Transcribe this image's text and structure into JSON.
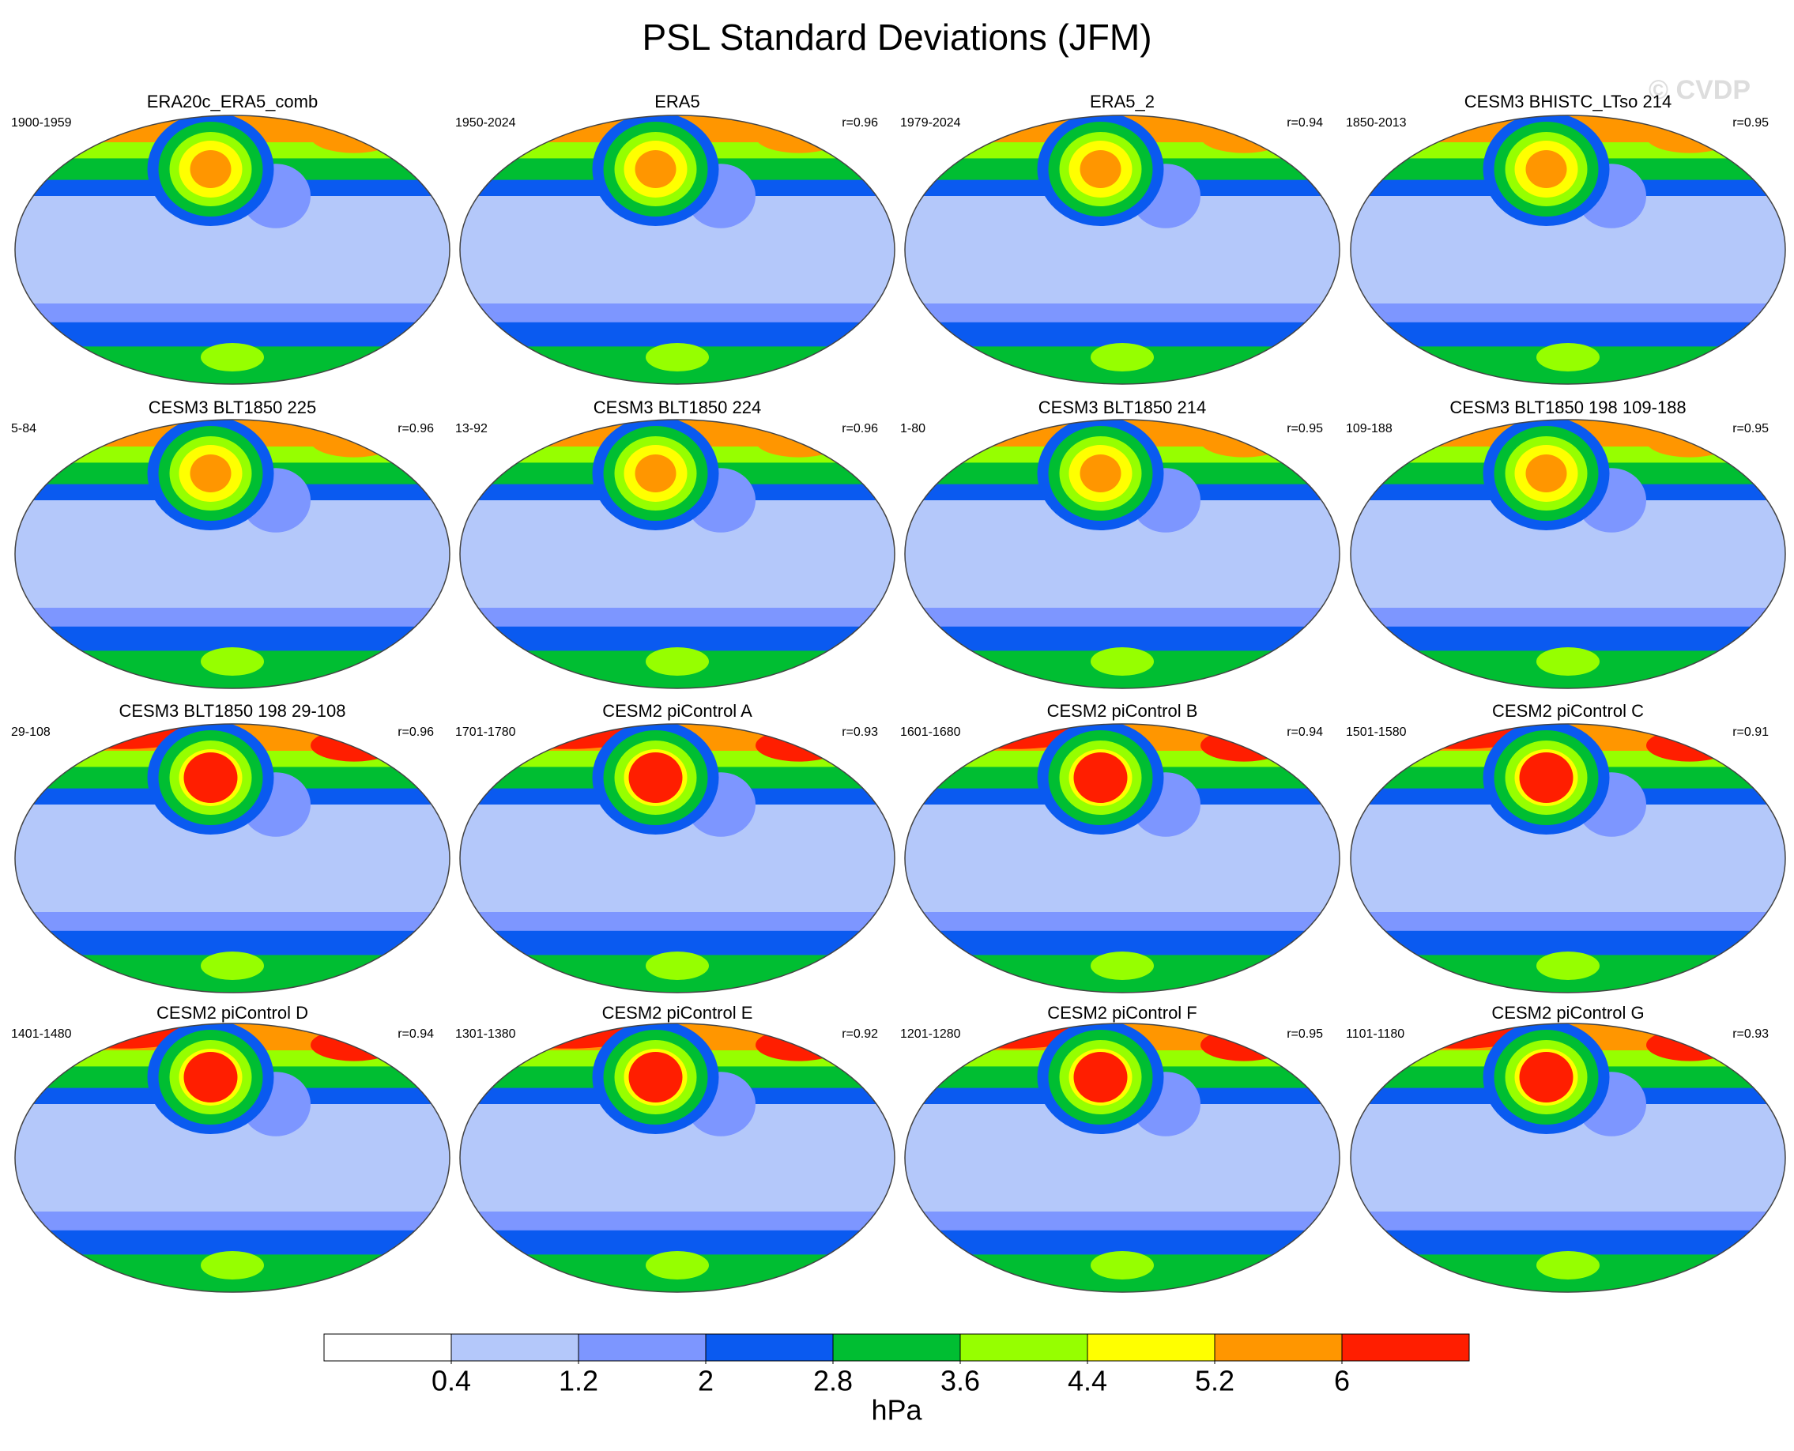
{
  "title": "PSL Standard Deviations (JFM)",
  "watermark": "© CVDP",
  "panels": [
    {
      "title": "ERA20c_ERA5_comb",
      "period": "1900-1959"
    },
    {
      "title": "ERA5",
      "period": "1950-2024",
      "r": "r=0.96"
    },
    {
      "title": "ERA5_2",
      "period": "1979-2024",
      "r": "r=0.94"
    },
    {
      "title": "CESM3 BHISTC_LTso 214",
      "period": "1850-2013",
      "r": "r=0.95"
    },
    {
      "title": "CESM3 BLT1850 225",
      "period": "5-84",
      "r": "r=0.96"
    },
    {
      "title": "CESM3 BLT1850 224",
      "period": "13-92",
      "r": "r=0.96"
    },
    {
      "title": "CESM3 BLT1850 214",
      "period": "1-80",
      "r": "r=0.95"
    },
    {
      "title": "CESM3 BLT1850 198 109-188",
      "period": "109-188",
      "r": "r=0.95"
    },
    {
      "title": "CESM3 BLT1850 198 29-108",
      "period": "29-108",
      "r": "r=0.96"
    },
    {
      "title": "CESM2 piControl A",
      "period": "1701-1780",
      "r": "r=0.93"
    },
    {
      "title": "CESM2 piControl B",
      "period": "1601-1680",
      "r": "r=0.94"
    },
    {
      "title": "CESM2 piControl C",
      "period": "1501-1580",
      "r": "r=0.91"
    },
    {
      "title": "CESM2 piControl D",
      "period": "1401-1480",
      "r": "r=0.94"
    },
    {
      "title": "CESM2 piControl E",
      "period": "1301-1380",
      "r": "r=0.92"
    },
    {
      "title": "CESM2 piControl F",
      "period": "1201-1280",
      "r": "r=0.95"
    },
    {
      "title": "CESM2 piControl G",
      "period": "1101-1180",
      "r": "r=0.93"
    }
  ],
  "colorbar": {
    "colors": [
      "#ffffff",
      "#b4c8fa",
      "#7d96ff",
      "#0a5af0",
      "#00be32",
      "#96ff00",
      "#ffff00",
      "#ff9600",
      "#ff1e00"
    ],
    "levels": [
      0.4,
      1.2,
      2,
      2.8,
      3.6,
      4.4,
      5.2,
      6
    ],
    "unit": "hPa"
  }
}
